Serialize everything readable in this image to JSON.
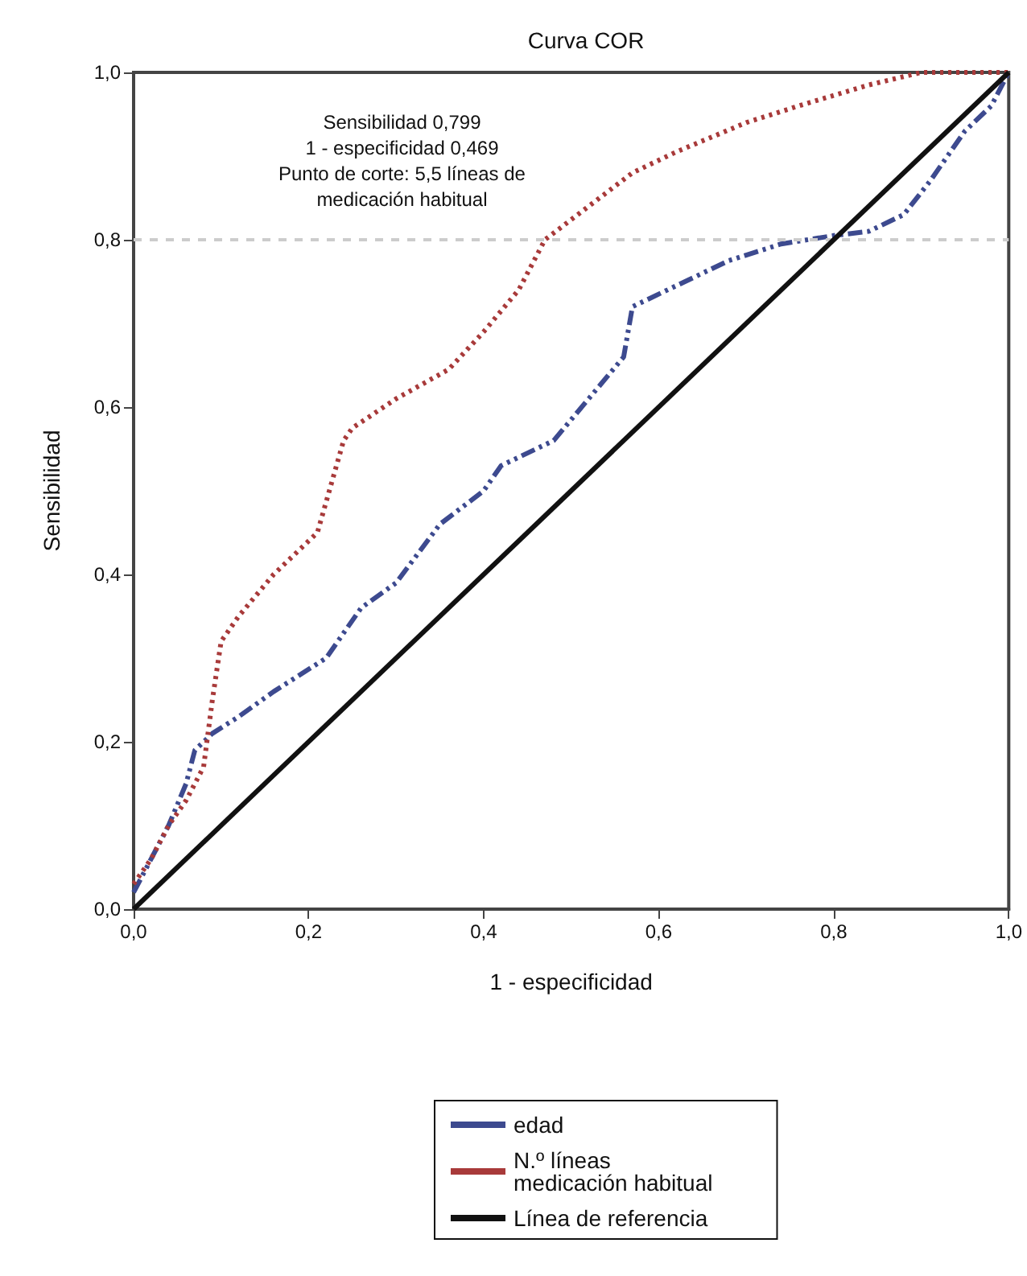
{
  "chart_data": {
    "type": "line",
    "title": "Curva COR",
    "xlabel": "1 - especificidad",
    "ylabel": "Sensibilidad",
    "annotations": [
      "Sensibilidad 0,799\n1 - especificidad 0,469\nPunto de corte: 5,5 líneas de\nmedicación habitual"
    ],
    "xlim": [
      0,
      1
    ],
    "ylim": [
      0,
      1
    ],
    "xticks": [
      {
        "value": 0,
        "label": "0,0"
      },
      {
        "value": 0.2,
        "label": "0,2"
      },
      {
        "value": 0.4,
        "label": "0,4"
      },
      {
        "value": 0.6,
        "label": "0,6"
      },
      {
        "value": 0.8,
        "label": "0,8"
      },
      {
        "value": 1,
        "label": "1,0"
      }
    ],
    "yticks": [
      {
        "value": 0,
        "label": "0,0"
      },
      {
        "value": 0.2,
        "label": "0,2"
      },
      {
        "value": 0.4,
        "label": "0,4"
      },
      {
        "value": 0.6,
        "label": "0,6"
      },
      {
        "value": 0.8,
        "label": "0,8"
      },
      {
        "value": 1,
        "label": "1,0"
      }
    ],
    "series": [
      {
        "name": "edad",
        "color": "#3d4a8f",
        "line_style": "dashed",
        "x": [
          0,
          0.02,
          0.04,
          0.06,
          0.07,
          0.09,
          0.12,
          0.16,
          0.22,
          0.26,
          0.3,
          0.35,
          0.4,
          0.42,
          0.48,
          0.52,
          0.56,
          0.57,
          0.62,
          0.68,
          0.74,
          0.8,
          0.84,
          0.88,
          0.91,
          0.95,
          0.98,
          1
        ],
        "values": [
          0.02,
          0.06,
          0.1,
          0.15,
          0.19,
          0.21,
          0.23,
          0.26,
          0.3,
          0.36,
          0.39,
          0.46,
          0.5,
          0.53,
          0.56,
          0.61,
          0.66,
          0.72,
          0.745,
          0.775,
          0.795,
          0.805,
          0.81,
          0.83,
          0.87,
          0.93,
          0.96,
          1
        ]
      },
      {
        "name": "N.º líneas medicación habitual",
        "color": "#a83a3a",
        "line_style": "dotted",
        "x": [
          0,
          0.02,
          0.04,
          0.06,
          0.08,
          0.09,
          0.1,
          0.12,
          0.16,
          0.21,
          0.24,
          0.25,
          0.3,
          0.36,
          0.4,
          0.44,
          0.47,
          0.52,
          0.57,
          0.62,
          0.7,
          0.76,
          0.84,
          0.9,
          1
        ],
        "values": [
          0.03,
          0.06,
          0.1,
          0.13,
          0.17,
          0.25,
          0.32,
          0.35,
          0.4,
          0.45,
          0.56,
          0.575,
          0.61,
          0.645,
          0.69,
          0.74,
          0.8,
          0.84,
          0.88,
          0.905,
          0.94,
          0.96,
          0.985,
          1,
          1
        ]
      },
      {
        "name": "Línea de referencia",
        "color": "#111111",
        "line_style": "solid",
        "x": [
          0,
          1
        ],
        "values": [
          0,
          1
        ]
      }
    ],
    "ref_lines": [
      {
        "axis": "y",
        "value": 0.8,
        "color": "#cccccc",
        "line_style": "dashed"
      }
    ],
    "marker": "none",
    "grid": false,
    "legend": "bottom"
  }
}
